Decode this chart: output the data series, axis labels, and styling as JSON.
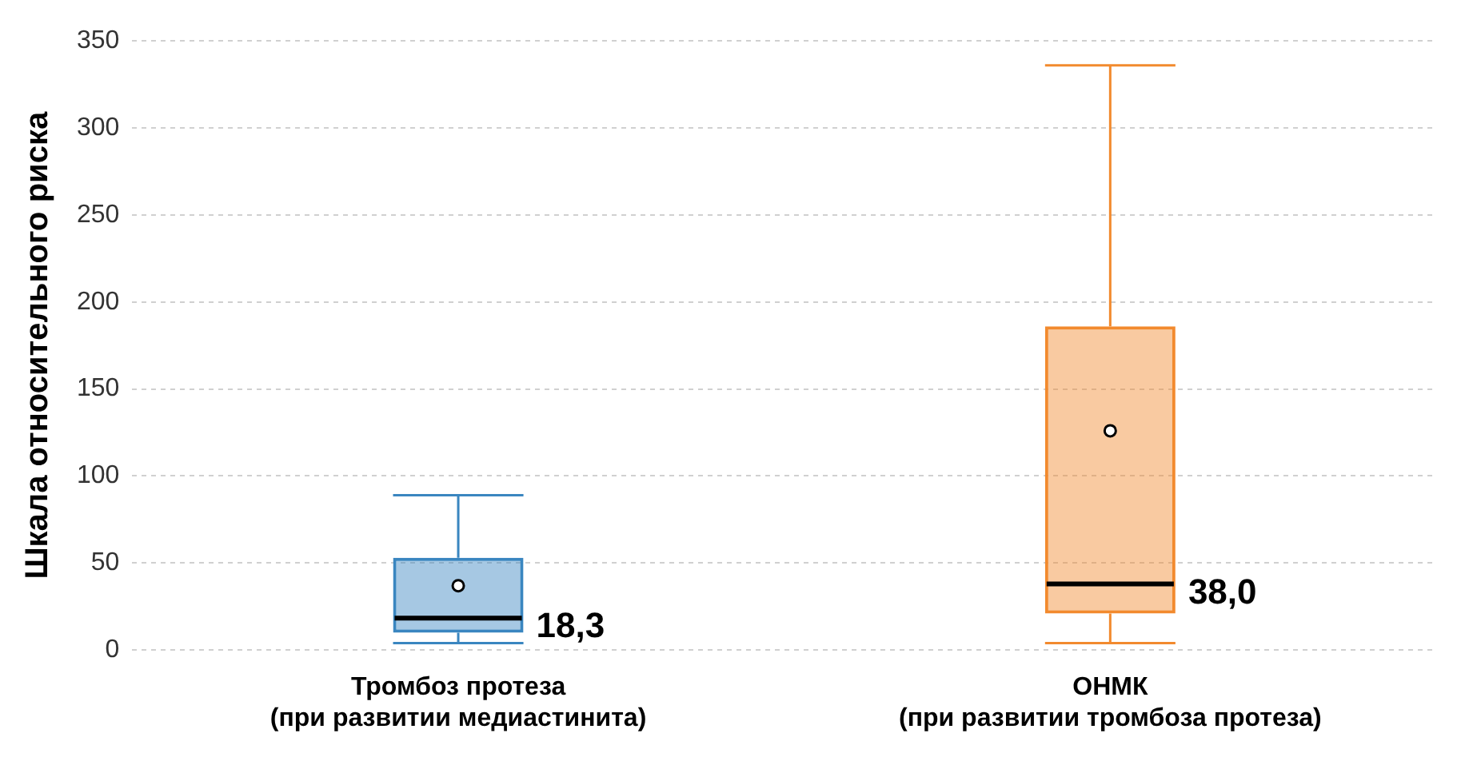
{
  "chart_data": {
    "type": "box",
    "ylabel": "Шкала относительного риска",
    "categories": [
      "Тромбоз протеза\n(при развитии медиастинита)",
      "ОНМК\n(при развитии тромбоза протеза)"
    ],
    "boxes": [
      {
        "low": 4,
        "q1": 10,
        "median": 18.3,
        "q3": 53,
        "high": 89,
        "mean": 37
      },
      {
        "low": 4,
        "q1": 21,
        "median": 38.0,
        "q3": 186,
        "high": 336,
        "mean": 126
      }
    ],
    "colors": [
      "#3a86c0",
      "#f28a2e"
    ],
    "value_labels": [
      "18,3",
      "38,0"
    ],
    "ylim": [
      0,
      350
    ],
    "yticks": [
      0,
      50,
      100,
      150,
      200,
      250,
      300,
      350
    ],
    "grid": "y",
    "legend": false
  }
}
